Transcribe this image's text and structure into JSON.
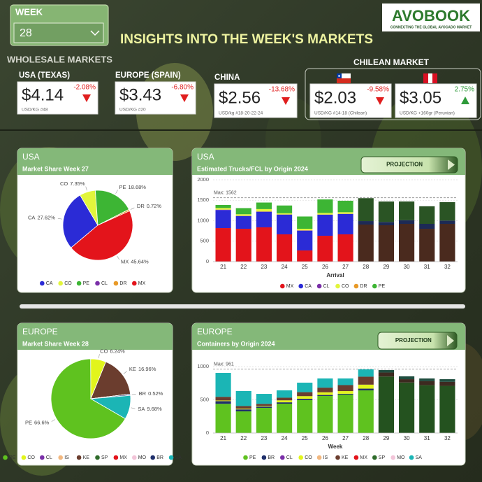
{
  "header": {
    "week_label": "WEEK",
    "week": "28",
    "title": "INSIGHTS INTO THE WEEK'S MARKETS",
    "logo": "AVOBOOK",
    "logo_tagline": "CONNECTING THE GLOBAL AVOCADO MARKET"
  },
  "markets": {
    "wholesale_label": "WHOLESALE MARKETS",
    "chilean_label": "CHILEAN MARKET",
    "items": [
      {
        "name": "USA (TEXAS)",
        "price": "$4.14",
        "change": "-2.08%",
        "unit": "USD/KG #48",
        "direction": "down"
      },
      {
        "name": "EUROPE (SPAIN)",
        "price": "$3.43",
        "change": "-6.80%",
        "unit": "USD/KG #20",
        "direction": "down"
      },
      {
        "name": "CHINA",
        "price": "$2.56",
        "change": "-13.68%",
        "unit": "USD/kg #18-20-22-24",
        "direction": "down"
      },
      {
        "flag": "chile",
        "price": "$2.03",
        "change": "-9.58%",
        "unit": "USD/KG #14-18 (Chilean)",
        "direction": "down"
      },
      {
        "flag": "peru",
        "price": "$3.05",
        "change": "2.75%",
        "unit": "USD/KG +160gr (Peruvian)",
        "direction": "up"
      }
    ]
  },
  "chart_data": [
    {
      "type": "pie",
      "section": "USA",
      "title": "Market Share Week 27",
      "categories": [
        "CA",
        "CO",
        "PE",
        "CL",
        "DR",
        "MX"
      ],
      "values": [
        27.62,
        7.35,
        18.68,
        0,
        0.72,
        45.64
      ],
      "value_labels": [
        "27.62%",
        "7.35%",
        "18.68%",
        null,
        "0.72%",
        "45.64%"
      ],
      "colors": [
        "#2b2bd6",
        "#e2f53c",
        "#3db534",
        "#7a2fa8",
        "#e89a28",
        "#e3141b"
      ]
    },
    {
      "type": "stacked_bar",
      "section": "USA",
      "title": "Estimated Trucks/FCL by Origin 2024",
      "button": "PROJECTION",
      "xlabel": "Arrival",
      "categories": [
        "21",
        "22",
        "23",
        "24",
        "25",
        "26",
        "27",
        "28",
        "29",
        "30",
        "31",
        "32"
      ],
      "projection_from": "28",
      "ylim": [
        0,
        2000
      ],
      "yticks": [
        0,
        500,
        1000,
        1500,
        2000
      ],
      "grid": true,
      "max_line": {
        "value": 1562,
        "label": "Max: 1562"
      },
      "series": [
        {
          "name": "MX",
          "color": "#e3141b",
          "projection_color": "#4a2a1e",
          "values": [
            820,
            803,
            838,
            667,
            274,
            632,
            667,
            906,
            889,
            923,
            803,
            923
          ]
        },
        {
          "name": "CA",
          "color": "#2b2bd6",
          "projection_color": "#1d2a55",
          "values": [
            440,
            310,
            376,
            480,
            479,
            513,
            496,
            85,
            80,
            90,
            120,
            80
          ]
        },
        {
          "name": "CL",
          "color": "#7a2fa8",
          "projection_color": "#2e2440",
          "values": [
            10,
            5,
            10,
            5,
            10,
            5,
            5,
            0,
            0,
            0,
            0,
            0
          ]
        },
        {
          "name": "CO",
          "color": "#e2f53c",
          "projection_color": "#5a6a22",
          "values": [
            40,
            40,
            60,
            30,
            40,
            40,
            40,
            0,
            0,
            0,
            0,
            0
          ]
        },
        {
          "name": "DR",
          "color": "#e89a28",
          "projection_color": "#5a3a1e",
          "values": [
            0,
            0,
            0,
            0,
            0,
            0,
            0,
            0,
            0,
            0,
            0,
            0
          ]
        },
        {
          "name": "PE",
          "color": "#3db534",
          "projection_color": "#2a5424",
          "values": [
            75,
            150,
            160,
            190,
            300,
            330,
            280,
            560,
            500,
            457,
            430,
            450
          ]
        }
      ]
    },
    {
      "type": "pie",
      "section": "EUROPE",
      "title": "Market Share Week 28",
      "categories": [
        "PE",
        "CO",
        "CL",
        "IS",
        "KE",
        "SP",
        "MX",
        "MO",
        "BR",
        "SA"
      ],
      "values": [
        66.6,
        6.24,
        0,
        0,
        16.96,
        0,
        0,
        0,
        0.52,
        9.68
      ],
      "value_labels": [
        "66.6%",
        "6.24%",
        null,
        null,
        "16.96%",
        null,
        null,
        null,
        "0.52%",
        "9.68%"
      ],
      "colors": [
        "#5fc21f",
        "#e2f51c",
        "#7a2fa8",
        "#f2b880",
        "#6b3d2e",
        "#2e6b2a",
        "#e3141b",
        "#f2c4d8",
        "#1f2f6b",
        "#1bb5b5"
      ]
    },
    {
      "type": "stacked_bar",
      "section": "EUROPE",
      "title": "Containers by Origin 2024",
      "button": "PROJECTION",
      "xlabel": "Week",
      "categories": [
        "21",
        "22",
        "23",
        "24",
        "25",
        "26",
        "27",
        "28",
        "29",
        "30",
        "31",
        "32"
      ],
      "projection_from": "29",
      "ylim": [
        0,
        1000
      ],
      "yticks": [
        0,
        500,
        1000
      ],
      "grid": true,
      "max_line": {
        "value": 961,
        "label": "Max: 961"
      },
      "series": [
        {
          "name": "PE",
          "color": "#5fc21f",
          "projection_color": "#24521f",
          "values": [
            440,
            326,
            379,
            442,
            495,
            558,
            579,
            642,
            850,
            760,
            720,
            710
          ]
        },
        {
          "name": "BR",
          "color": "#1f2f6b",
          "projection_color": "#1a2436",
          "values": [
            40,
            30,
            20,
            20,
            20,
            15,
            12,
            26,
            0,
            0,
            0,
            0
          ]
        },
        {
          "name": "CL",
          "color": "#7a2fa8",
          "projection_color": "#2e2440",
          "values": [
            0,
            0,
            0,
            0,
            0,
            0,
            0,
            0,
            0,
            0,
            0,
            0
          ]
        },
        {
          "name": "CO",
          "color": "#e2f51c",
          "projection_color": "#5a6a22",
          "values": [
            10,
            10,
            10,
            30,
            40,
            40,
            40,
            60,
            0,
            0,
            0,
            0
          ]
        },
        {
          "name": "IS",
          "color": "#f2b880",
          "projection_color": "#5a4a36",
          "values": [
            0,
            0,
            0,
            0,
            0,
            0,
            0,
            0,
            0,
            0,
            0,
            0
          ]
        },
        {
          "name": "KE",
          "color": "#6b3d2e",
          "projection_color": "#3d2a20",
          "values": [
            55,
            40,
            30,
            40,
            60,
            70,
            90,
            120,
            60,
            50,
            60,
            60
          ]
        },
        {
          "name": "MX",
          "color": "#e3141b",
          "projection_color": "#4a2a1e",
          "values": [
            0,
            0,
            0,
            0,
            0,
            0,
            0,
            0,
            0,
            0,
            0,
            0
          ]
        },
        {
          "name": "SP",
          "color": "#2e6b2a",
          "projection_color": "#1e3a1c",
          "values": [
            0,
            0,
            0,
            0,
            0,
            0,
            0,
            0,
            0,
            0,
            0,
            0
          ]
        },
        {
          "name": "MO",
          "color": "#f2c4d8",
          "projection_color": "#5a4a50",
          "values": [
            0,
            0,
            0,
            0,
            0,
            0,
            0,
            0,
            0,
            0,
            0,
            0
          ]
        },
        {
          "name": "SA",
          "color": "#1bb5b5",
          "projection_color": "#1f4d3f",
          "values": [
            360,
            226,
            150,
            110,
            143,
            138,
            100,
            110,
            37,
            43,
            41,
            40
          ]
        }
      ]
    }
  ]
}
